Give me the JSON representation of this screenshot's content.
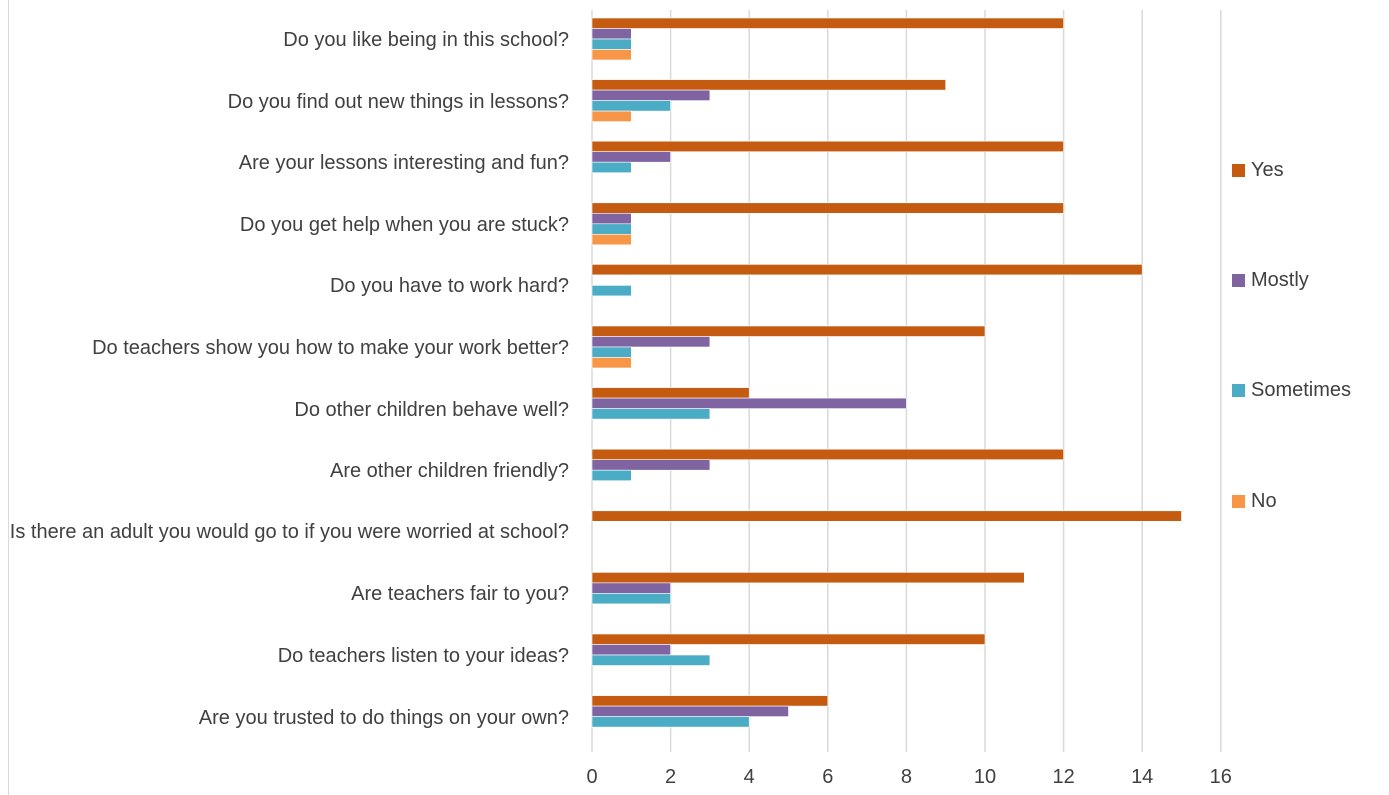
{
  "chart_data": {
    "type": "bar",
    "orientation": "horizontal",
    "categories": [
      "Do you like being in this school?",
      "Do you find out new things in lessons?",
      "Are your lessons interesting and fun?",
      "Do you get help when you are stuck?",
      "Do you have to work hard?",
      "Do teachers show you how to make your work better?",
      "Do other children behave well?",
      "Are other children friendly?",
      "Is there an adult you would go to if you were worried at school?",
      "Are teachers fair to you?",
      "Do teachers listen to your ideas?",
      "Are you trusted to do things on your own?"
    ],
    "series": [
      {
        "name": "Yes",
        "color": "#c55a11",
        "values": [
          12,
          9,
          12,
          12,
          14,
          10,
          4,
          12,
          15,
          11,
          10,
          6
        ]
      },
      {
        "name": "Mostly",
        "color": "#8064a2",
        "values": [
          1,
          3,
          2,
          1,
          0,
          3,
          8,
          3,
          0,
          2,
          2,
          5
        ]
      },
      {
        "name": "Sometimes",
        "color": "#4bacc6",
        "values": [
          1,
          2,
          1,
          1,
          1,
          1,
          3,
          1,
          0,
          2,
          3,
          4
        ]
      },
      {
        "name": "No",
        "color": "#f79646",
        "values": [
          1,
          1,
          0,
          1,
          0,
          1,
          0,
          0,
          0,
          0,
          0,
          0
        ]
      }
    ],
    "xlim": [
      0,
      16
    ],
    "xticks": [
      "0",
      "2",
      "4",
      "6",
      "8",
      "10",
      "12",
      "14",
      "16"
    ],
    "grid": true,
    "legend_position": "right",
    "title": "",
    "xlabel": "",
    "ylabel": ""
  }
}
